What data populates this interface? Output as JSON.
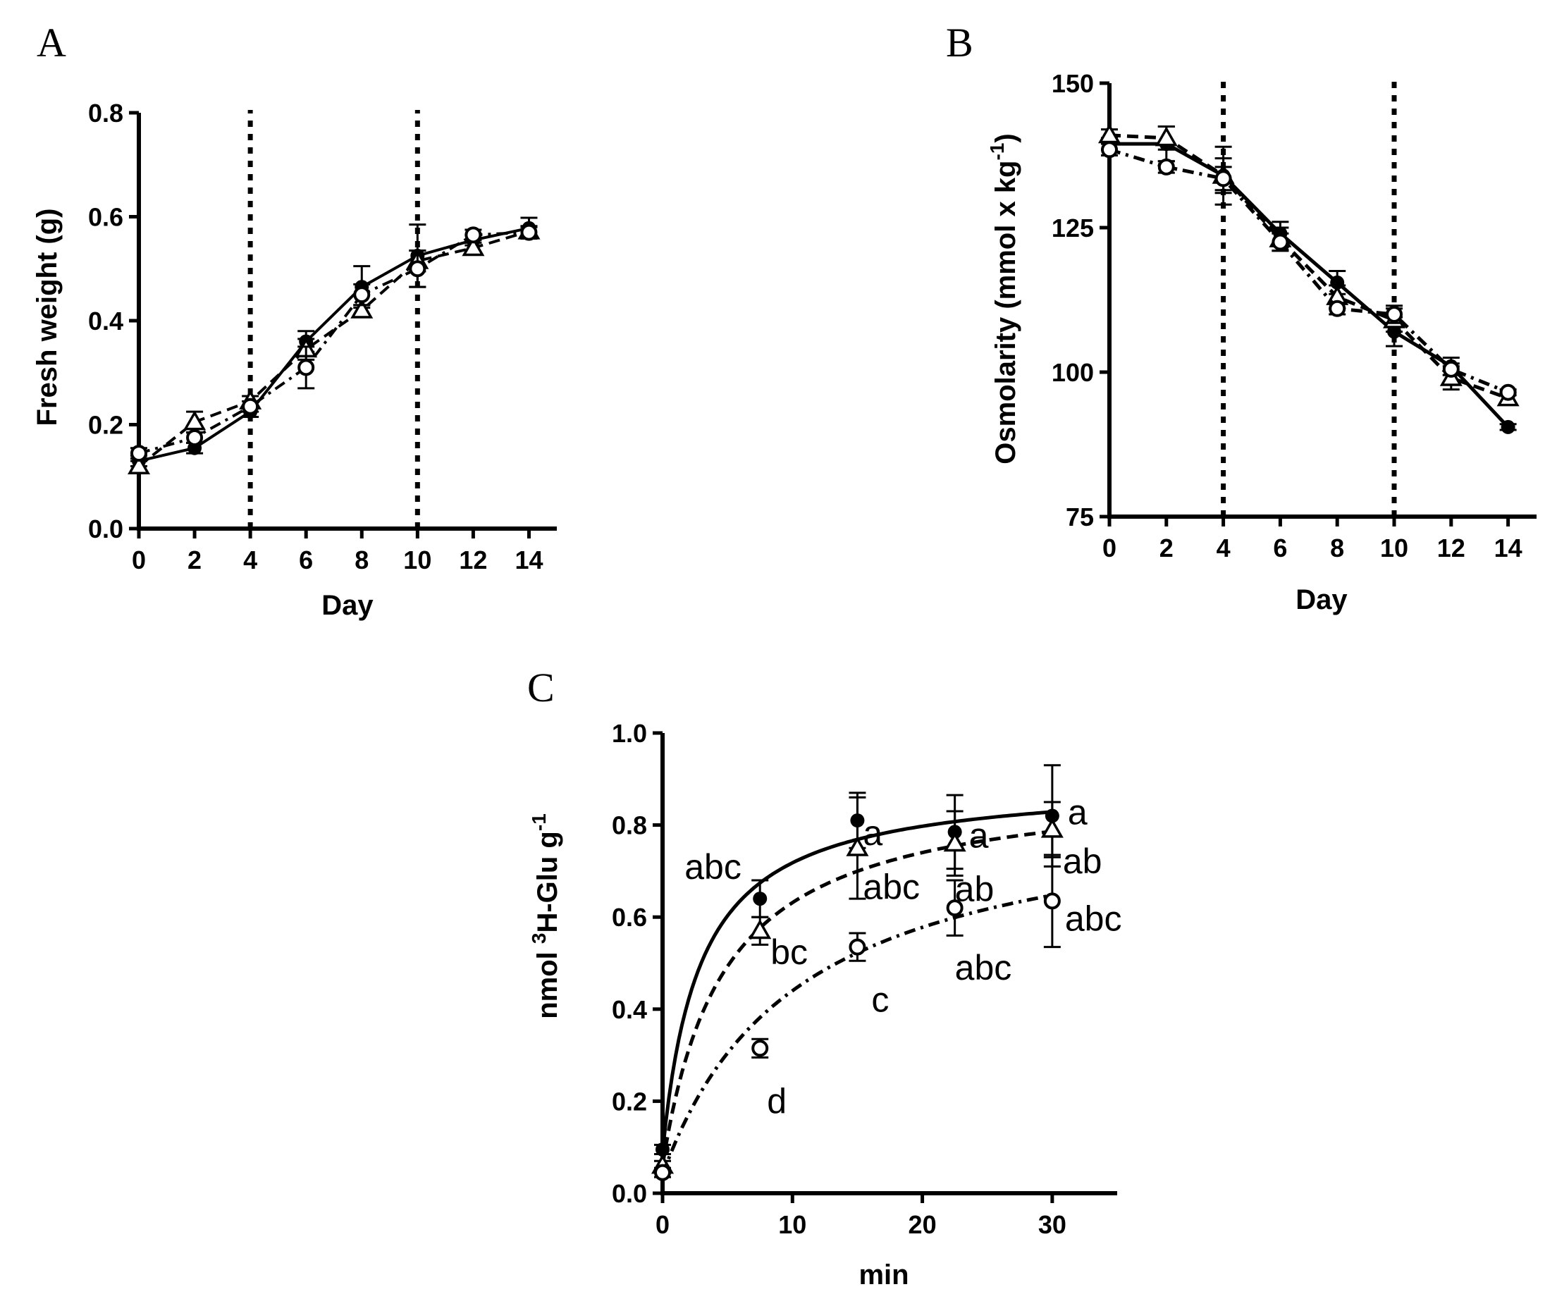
{
  "chart_data": [
    {
      "panel": "A",
      "type": "line",
      "xlabel": "Day",
      "ylabel": "Fresh weight (g)",
      "xlim": [
        0,
        15
      ],
      "ylim": [
        0,
        0.8
      ],
      "xticks": [
        "0",
        "2",
        "4",
        "6",
        "8",
        "10",
        "12",
        "14"
      ],
      "yticks": [
        "0.0",
        "0.2",
        "0.4",
        "0.6",
        "0.8"
      ],
      "vlines": [
        4,
        10
      ],
      "grid": false,
      "series": [
        {
          "marker": "filled-circle",
          "line": "solid",
          "x": [
            0,
            2,
            4,
            6,
            8,
            10,
            12,
            14
          ],
          "y": [
            0.13,
            0.155,
            0.225,
            0.36,
            0.465,
            0.525,
            0.555,
            0.578
          ],
          "err": [
            0.01,
            0.01,
            0.01,
            0.02,
            0.04,
            0.06,
            0.01,
            0.02
          ]
        },
        {
          "marker": "open-triangle",
          "line": "dashed",
          "x": [
            0,
            2,
            4,
            6,
            8,
            10,
            12,
            14
          ],
          "y": [
            0.12,
            0.205,
            0.245,
            0.345,
            0.42,
            0.515,
            0.54,
            0.572
          ],
          "err": [
            0.01,
            0.02,
            0.01,
            0.02,
            0.01,
            0.02,
            0.01,
            0.01
          ]
        },
        {
          "marker": "open-circle",
          "line": "dash-dot",
          "x": [
            0,
            2,
            4,
            6,
            8,
            10,
            12,
            14
          ],
          "y": [
            0.145,
            0.175,
            0.235,
            0.31,
            0.45,
            0.5,
            0.565,
            0.57
          ],
          "err": [
            0.01,
            0.01,
            0.01,
            0.04,
            0.02,
            0.035,
            0.01,
            0.01
          ]
        }
      ]
    },
    {
      "panel": "B",
      "type": "line",
      "xlabel": "Day",
      "ylabel": "Osmolarity (mmol x kg -1)",
      "xlim": [
        0,
        15
      ],
      "ylim": [
        75,
        150
      ],
      "xticks": [
        "0",
        "2",
        "4",
        "6",
        "8",
        "10",
        "12",
        "14"
      ],
      "yticks": [
        "75",
        "100",
        "125",
        "150"
      ],
      "vlines": [
        4,
        10
      ],
      "grid": false,
      "series": [
        {
          "marker": "filled-circle",
          "line": "solid",
          "x": [
            0,
            2,
            4,
            6,
            8,
            10,
            12,
            14
          ],
          "y": [
            139.5,
            139.5,
            134,
            124,
            115.5,
            107,
            101,
            90.5
          ],
          "err": [
            1,
            3,
            5,
            2,
            2,
            2.5,
            1.5,
            0.5
          ]
        },
        {
          "marker": "open-triangle",
          "line": "dashed",
          "x": [
            0,
            2,
            4,
            6,
            8,
            10,
            12,
            14
          ],
          "y": [
            141,
            140.5,
            134,
            123,
            113,
            109,
            99,
            95.5
          ],
          "err": [
            1,
            2,
            3,
            2,
            2,
            2,
            2,
            1
          ]
        },
        {
          "marker": "open-circle",
          "line": "dash-dot",
          "x": [
            0,
            2,
            4,
            6,
            8,
            10,
            12,
            14
          ],
          "y": [
            138.5,
            135.5,
            133.5,
            122.5,
            111,
            110,
            100.5,
            96.5
          ],
          "err": [
            1,
            1,
            2,
            1.5,
            1,
            1.5,
            1,
            0.5
          ]
        }
      ]
    },
    {
      "panel": "C",
      "type": "scatter",
      "xlabel": "min",
      "ylabel": "nmol 3H-Glu g-1",
      "xlim": [
        0,
        35
      ],
      "ylim": [
        0,
        1.0
      ],
      "xticks": [
        "0",
        "10",
        "20",
        "30"
      ],
      "yticks": [
        "0.0",
        "0.2",
        "0.4",
        "0.6",
        "0.8",
        "1.0"
      ],
      "grid": false,
      "series": [
        {
          "marker": "filled-circle",
          "line": "solid",
          "x": [
            0,
            7.5,
            15,
            22.5,
            30
          ],
          "y": [
            0.095,
            0.64,
            0.81,
            0.785,
            0.82
          ],
          "err": [
            0.01,
            0.04,
            0.06,
            0.08,
            0.11
          ],
          "letters": [
            "",
            "abc",
            "a",
            "a",
            "a"
          ],
          "fit": {
            "vmax": 0.9,
            "k": 2.9,
            "y0": 0.09
          }
        },
        {
          "marker": "open-triangle",
          "line": "dashed",
          "x": [
            0,
            7.5,
            15,
            22.5,
            30
          ],
          "y": [
            0.06,
            0.57,
            0.75,
            0.76,
            0.79
          ],
          "err": [
            0.01,
            0.03,
            0.11,
            0.07,
            0.06
          ],
          "letters": [
            "",
            "bc",
            "abc",
            "ab",
            "ab"
          ],
          "fit": {
            "vmax": 0.9,
            "k": 4.7,
            "y0": 0.06
          }
        },
        {
          "marker": "open-circle",
          "line": "dash-dot",
          "x": [
            0,
            7.5,
            15,
            22.5,
            30
          ],
          "y": [
            0.045,
            0.315,
            0.535,
            0.62,
            0.635
          ],
          "err": [
            0.01,
            0.02,
            0.03,
            0.06,
            0.1
          ],
          "letters": [
            "",
            "d",
            "c",
            "abc",
            "abc"
          ],
          "fit": {
            "vmax": 0.86,
            "k": 10.5,
            "y0": 0.04
          }
        }
      ]
    }
  ],
  "panels": {
    "A": {
      "letter": "A",
      "xlabel": "Day",
      "ylabel": "Fresh weight (g)"
    },
    "B": {
      "letter": "B",
      "xlabel": "Day",
      "ylabel_main": "Osmolarity (mmol x kg",
      "ylabel_sup": "-1",
      "ylabel_close": ")"
    },
    "C": {
      "letter": "C",
      "xlabel": "min",
      "ylabel_pre": "nmol ",
      "ylabel_sup1": "3",
      "ylabel_mid": "H-Glu g",
      "ylabel_sup2": "-1"
    }
  }
}
